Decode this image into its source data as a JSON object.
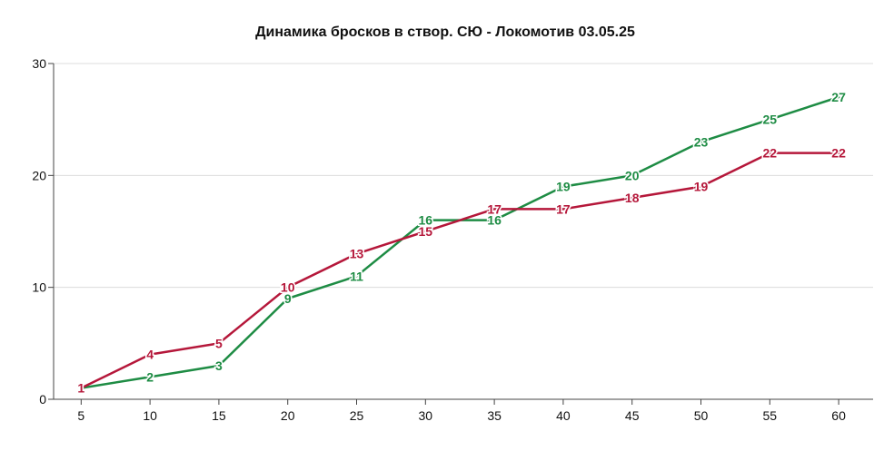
{
  "chart_data": {
    "type": "line",
    "title": "Динамика бросков в створ. СЮ - Локомотив 03.05.25",
    "xlabel": "",
    "ylabel": "",
    "x": [
      5,
      10,
      15,
      20,
      25,
      30,
      35,
      40,
      45,
      50,
      55,
      60
    ],
    "xlim": [
      3,
      62.5
    ],
    "ylim": [
      0,
      30
    ],
    "x_ticks": [
      "5",
      "10",
      "15",
      "20",
      "25",
      "30",
      "35",
      "40",
      "45",
      "50",
      "55",
      "60"
    ],
    "y_ticks": [
      "0",
      "10",
      "20",
      "30"
    ],
    "grid": true,
    "legend": "none",
    "series": [
      {
        "color": "#1e8c44",
        "values": [
          1,
          2,
          3,
          9,
          11,
          16,
          16,
          19,
          20,
          23,
          25,
          27
        ]
      },
      {
        "color": "#b5173a",
        "values": [
          1,
          4,
          5,
          10,
          13,
          15,
          17,
          17,
          18,
          19,
          22,
          22
        ]
      }
    ]
  }
}
